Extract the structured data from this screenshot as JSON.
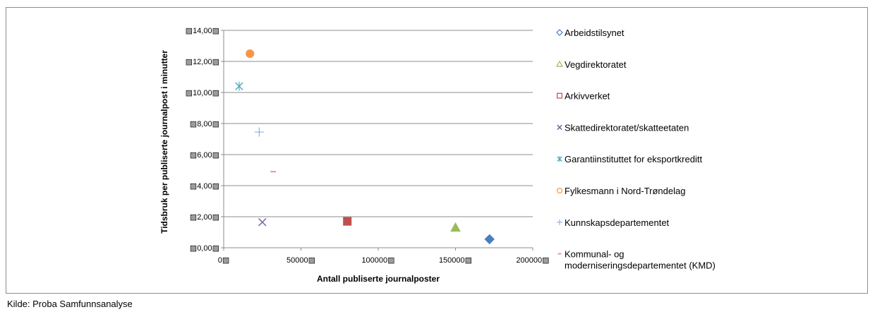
{
  "chart_data": {
    "type": "scatter",
    "xlabel": "Antall publiserte journalposter",
    "ylabel": "Tidsbruk per publiserte journalpost i minutter",
    "xlim": [
      0,
      200000
    ],
    "ylim": [
      0,
      14
    ],
    "x_tick_labels": [
      "0",
      "50000",
      "100000",
      "150000",
      "200000"
    ],
    "y_tick_labels": [
      "0,00",
      "2,00",
      "4,00",
      "6,00",
      "8,00",
      "10,00",
      "12,00",
      "14,00"
    ],
    "tick_suffix": "▨",
    "grid": "horizontal",
    "legend_position": "right",
    "series": [
      {
        "name": "Arbeidstilsynet",
        "x": 172000,
        "y": 0.55,
        "marker": "diamond",
        "color": "#4a7ebf"
      },
      {
        "name": "Vegdirektoratet",
        "x": 150000,
        "y": 1.3,
        "marker": "triangle",
        "color": "#9bbb59"
      },
      {
        "name": "Arkivverket",
        "x": 80000,
        "y": 1.7,
        "marker": "square",
        "color": "#c0504d"
      },
      {
        "name": "Skattedirektoratet/skatteetaten",
        "x": 25000,
        "y": 1.65,
        "marker": "x",
        "color": "#7a5fa0"
      },
      {
        "name": "Garantiinstituttet for eksportkreditt",
        "x": 10000,
        "y": 10.4,
        "marker": "star",
        "color": "#4bacc6"
      },
      {
        "name": "Fylkesmann i Nord-Trøndelag",
        "x": 17000,
        "y": 12.5,
        "marker": "circle",
        "color": "#f79646"
      },
      {
        "name": "Kunnskapsdepartementet",
        "x": 23000,
        "y": 7.45,
        "marker": "plus",
        "color": "#8eb4e3"
      },
      {
        "name": "Kommunal- og moderniseringsdepartementet (KMD)",
        "x": 32000,
        "y": 4.9,
        "marker": "dash",
        "color": "#e6a0a0"
      }
    ]
  },
  "source": "Kilde: Proba Samfunnsanalyse"
}
